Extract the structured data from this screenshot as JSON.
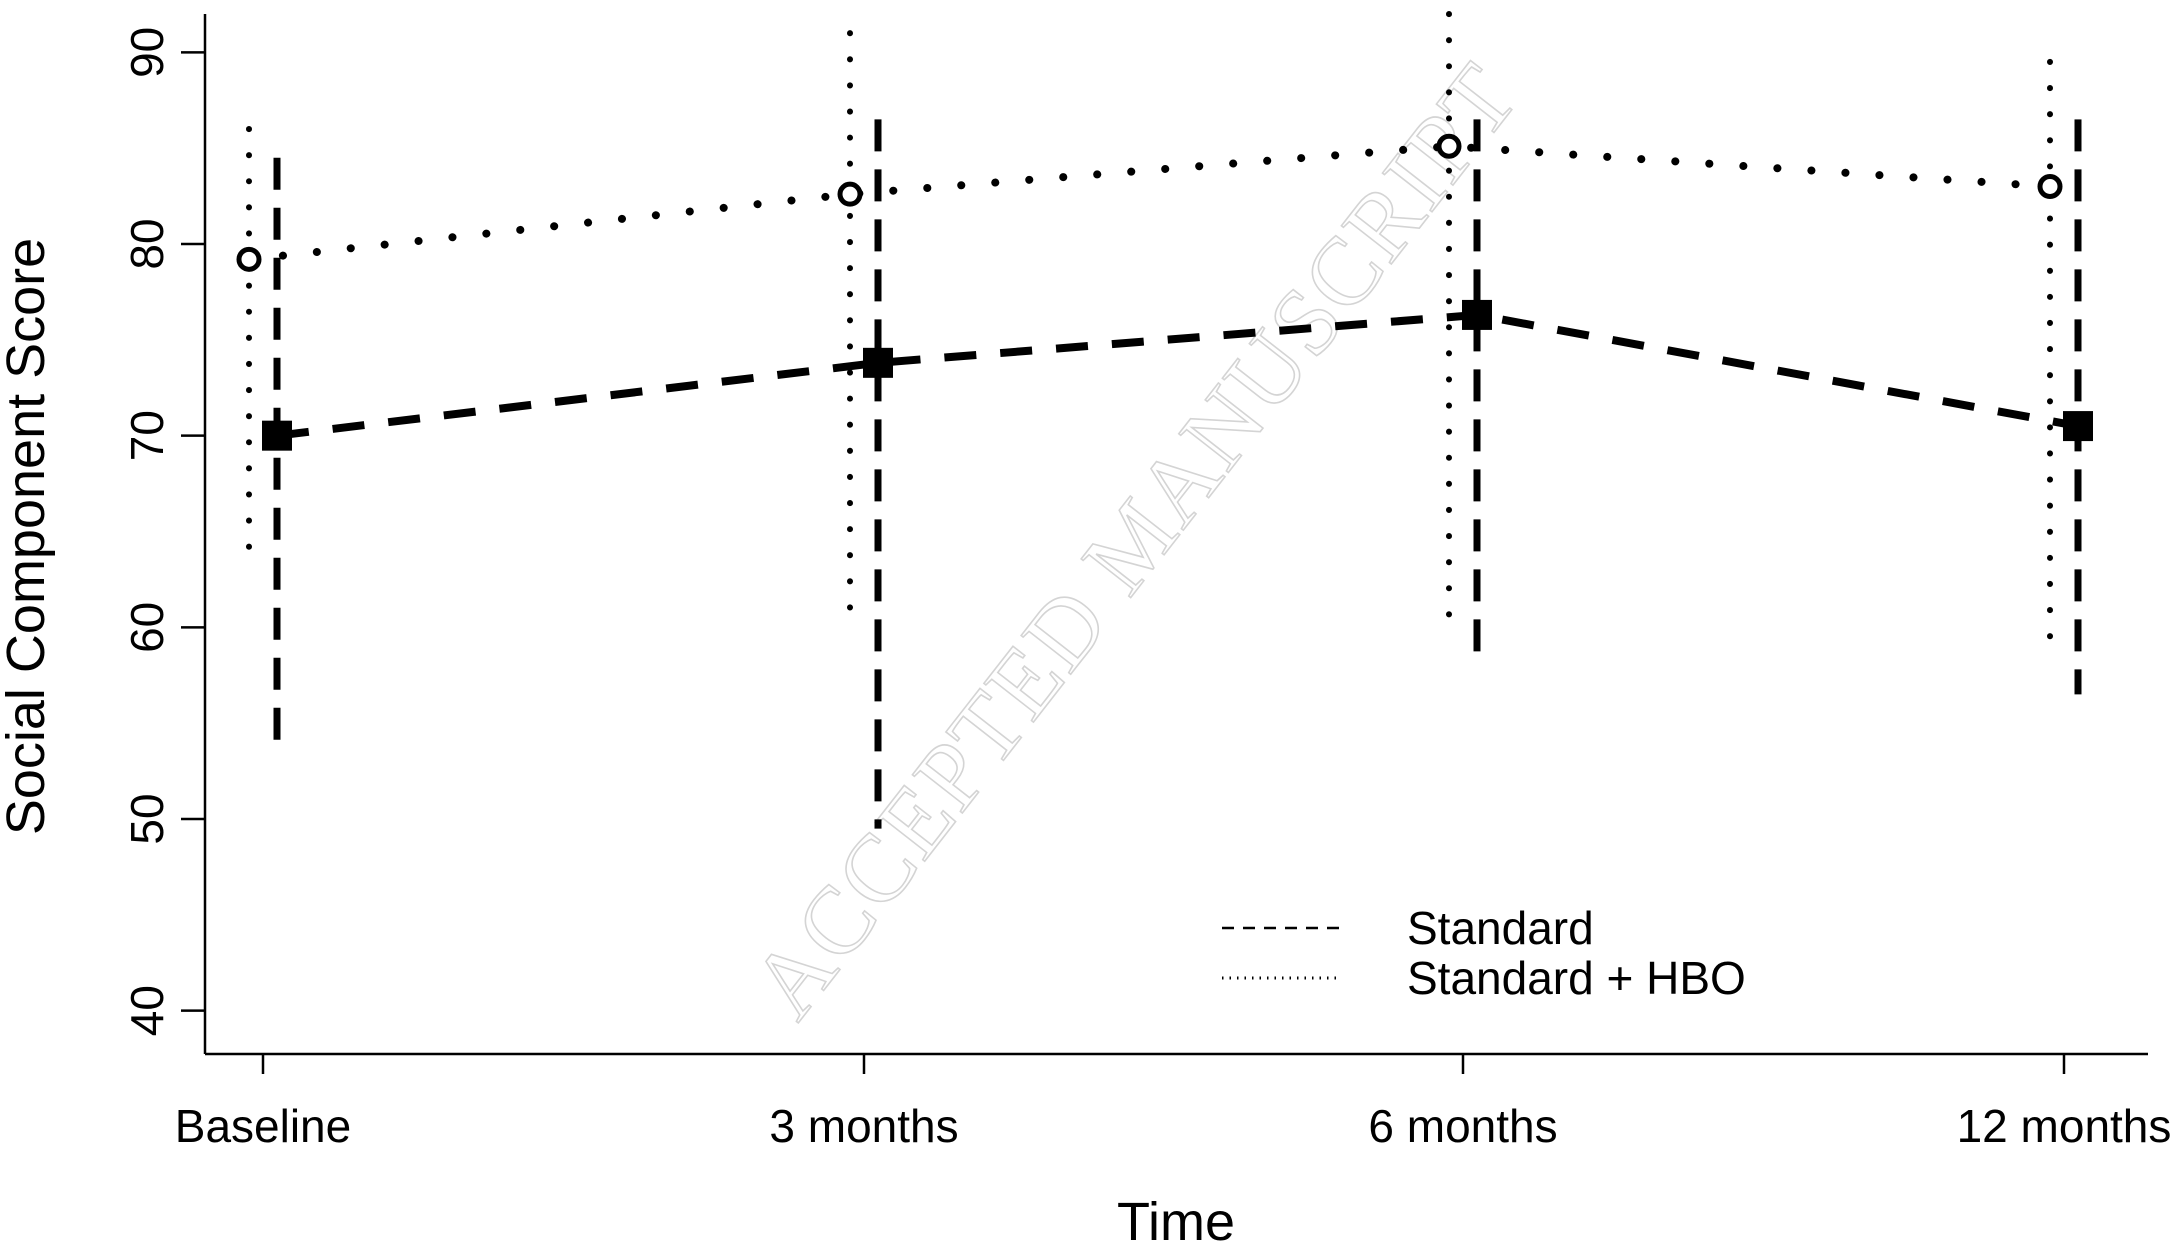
{
  "chart_data": {
    "type": "line",
    "xlabel": "Time",
    "ylabel": "Social Component Score",
    "categories": [
      "Baseline",
      "3 months",
      "6 months",
      "12 months"
    ],
    "ylim": [
      38,
      92
    ],
    "yticks": [
      40,
      50,
      60,
      70,
      80,
      90
    ],
    "grid": false,
    "legend_position": "bottom-right",
    "series": [
      {
        "name": "Standard",
        "line_style": "dashed",
        "marker": "filled-square",
        "values": [
          70.0,
          73.8,
          76.3,
          70.5
        ],
        "error_low": [
          53.5,
          49.5,
          58.5,
          56.5
        ],
        "error_high": [
          84.5,
          86.5,
          86.5,
          86.5
        ]
      },
      {
        "name": "Standard + HBO",
        "line_style": "dotted",
        "marker": "open-circle",
        "values": [
          79.2,
          82.6,
          85.1,
          83.0
        ],
        "error_low": [
          63.0,
          60.0,
          60.5,
          58.5
        ],
        "error_high": [
          86.0,
          91.0,
          92.0,
          89.5
        ]
      }
    ],
    "colors": {
      "ink": "#000000",
      "watermark": "#d4d4d4"
    }
  },
  "watermark_text": "ACCEPTED MANUSCRIPT"
}
